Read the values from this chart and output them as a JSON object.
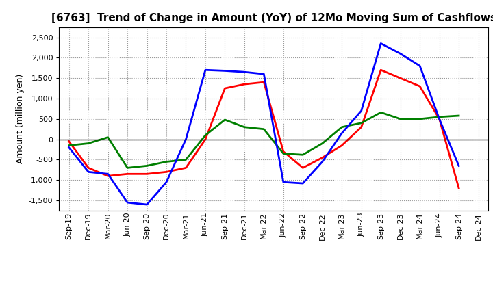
{
  "title": "[6763]  Trend of Change in Amount (YoY) of 12Mo Moving Sum of Cashflows",
  "ylabel": "Amount (million yen)",
  "xlabels": [
    "Sep-19",
    "Dec-19",
    "Mar-20",
    "Jun-20",
    "Sep-20",
    "Dec-20",
    "Mar-21",
    "Jun-21",
    "Sep-21",
    "Dec-21",
    "Mar-22",
    "Jun-22",
    "Sep-22",
    "Dec-22",
    "Mar-23",
    "Jun-23",
    "Sep-23",
    "Dec-23",
    "Mar-24",
    "Jun-24",
    "Sep-24",
    "Dec-24"
  ],
  "operating": [
    -50,
    -700,
    -900,
    -850,
    -850,
    -800,
    -700,
    0,
    1250,
    1350,
    1400,
    -300,
    -700,
    -450,
    -150,
    300,
    1700,
    1500,
    1300,
    500,
    -1200,
    null
  ],
  "investing": [
    -150,
    -100,
    50,
    -700,
    -650,
    -550,
    -500,
    100,
    480,
    300,
    250,
    -350,
    -380,
    -100,
    300,
    400,
    660,
    500,
    500,
    550,
    580,
    null
  ],
  "free": [
    -200,
    -800,
    -850,
    -1550,
    -1600,
    -1050,
    0,
    1700,
    1680,
    1650,
    1600,
    -1050,
    -1080,
    -550,
    150,
    700,
    2350,
    2100,
    1800,
    500,
    -650,
    null
  ],
  "ylim": [
    -1750,
    2750
  ],
  "yticks": [
    -1500,
    -1000,
    -500,
    0,
    500,
    1000,
    1500,
    2000,
    2500
  ],
  "operating_color": "#FF0000",
  "investing_color": "#008000",
  "free_color": "#0000FF",
  "bg_color": "#FFFFFF",
  "grid_color": "#999999",
  "linewidth": 2.0,
  "title_fontsize": 11,
  "axis_fontsize": 8,
  "ylabel_fontsize": 9,
  "legend_fontsize": 9
}
